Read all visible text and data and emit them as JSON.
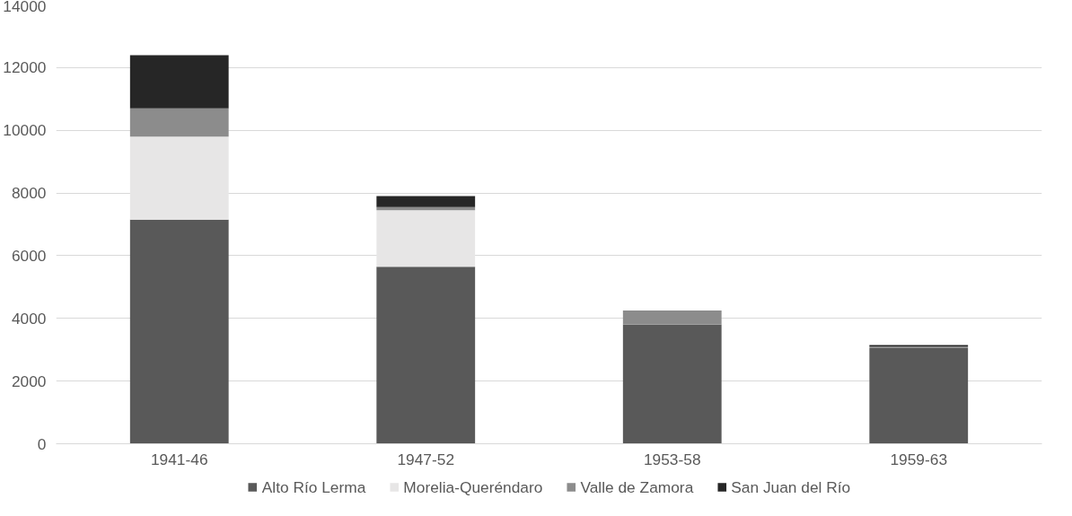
{
  "chart_data": {
    "type": "bar",
    "stacked": true,
    "categories": [
      "1941-46",
      "1947-52",
      "1953-58",
      "1959-63"
    ],
    "series": [
      {
        "name": "Alto Río Lerma",
        "color": "#595959",
        "values": [
          7150,
          5650,
          3800,
          3050
        ]
      },
      {
        "name": "Morelia-Queréndaro",
        "color": "#e7e6e6",
        "values": [
          2650,
          1800,
          0,
          0
        ]
      },
      {
        "name": "Valle de Zamora",
        "color": "#8c8c8c",
        "values": [
          900,
          100,
          450,
          50
        ]
      },
      {
        "name": "San Juan del Río",
        "color": "#262626",
        "values": [
          1700,
          350,
          0,
          50
        ]
      }
    ],
    "ylim": [
      0,
      14000
    ],
    "yticks": [
      0,
      2000,
      4000,
      6000,
      8000,
      10000,
      12000,
      14000
    ],
    "grid": "y",
    "legend": "bottom"
  }
}
